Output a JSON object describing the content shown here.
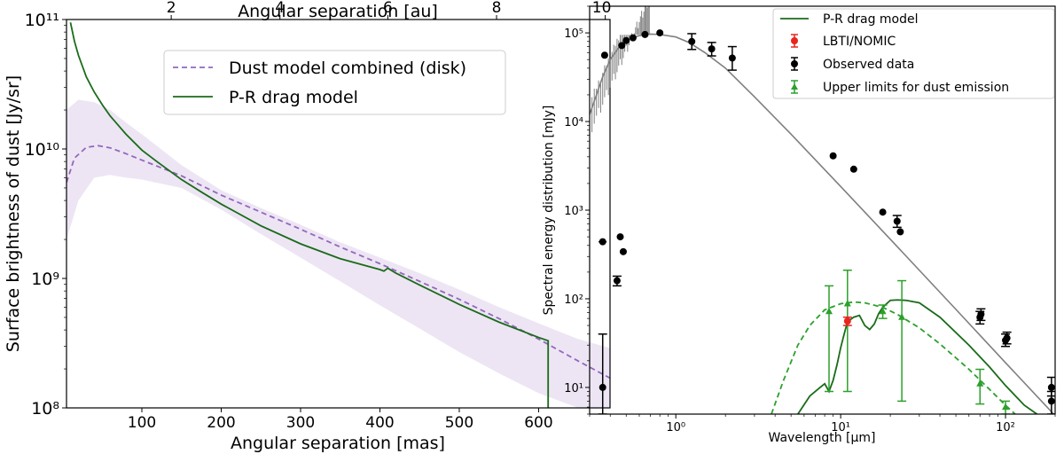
{
  "chart_data": [
    {
      "type": "line",
      "panel": "left",
      "xlabel": "Angular separation [mas]",
      "ylabel": "Surface brightness of dust [Jy/sr]",
      "top_xlabel": "Angular separation [au]",
      "xlim": [
        5,
        690
      ],
      "ylim": [
        100000000.0,
        100000000000.0
      ],
      "yscale": "log",
      "x_ticks": [
        100,
        200,
        300,
        400,
        500,
        600
      ],
      "x_tick_labels": [
        "100",
        "200",
        "300",
        "400",
        "500",
        "600"
      ],
      "top_ticks_mas": [
        137,
        274,
        410,
        547,
        684
      ],
      "top_tick_labels": [
        "2",
        "4",
        "6",
        "8",
        "10"
      ],
      "y_ticks": [
        100000000.0,
        1000000000.0,
        10000000000.0,
        100000000000.0
      ],
      "y_tick_labels": [
        "10⁸",
        "10⁹",
        "10¹⁰",
        "10¹¹"
      ],
      "legend": [
        {
          "label": "Dust model combined (disk)",
          "color": "#9467bd",
          "style": "dashed"
        },
        {
          "label": "P-R drag model",
          "color": "#1a6b1a",
          "style": "solid"
        }
      ],
      "band": {
        "name": "Dust model uncertainty",
        "color": "#9467bd",
        "x": [
          5,
          20,
          40,
          60,
          80,
          100,
          150,
          200,
          250,
          300,
          350,
          400,
          450,
          500,
          550,
          600,
          650,
          690
        ],
        "upper": [
          20000000000.0,
          24000000000.0,
          23000000000.0,
          20000000000.0,
          16000000000.0,
          13000000000.0,
          7500000000.0,
          4800000000.0,
          3500000000.0,
          2600000000.0,
          1900000000.0,
          1450000000.0,
          1100000000.0,
          820000000.0,
          600000000.0,
          450000000.0,
          340000000.0,
          290000000.0
        ],
        "lower": [
          2000000000.0,
          4000000000.0,
          6000000000.0,
          6300000000.0,
          6000000000.0,
          5800000000.0,
          5000000000.0,
          3400000000.0,
          2200000000.0,
          1450000000.0,
          950000000.0,
          620000000.0,
          410000000.0,
          270000000.0,
          185000000.0,
          130000000.0,
          100000000.0,
          80000000.0
        ]
      },
      "series": [
        {
          "name": "Dust model combined (disk)",
          "color": "#9467bd",
          "style": "dashed",
          "x": [
            5,
            15,
            30,
            45,
            60,
            80,
            100,
            150,
            200,
            250,
            300,
            350,
            400,
            450,
            500,
            550,
            600,
            650,
            690
          ],
          "y": [
            5500000000.0,
            8500000000.0,
            10300000000.0,
            10600000000.0,
            10200000000.0,
            9200000000.0,
            8200000000.0,
            6200000000.0,
            4400000000.0,
            3250000000.0,
            2400000000.0,
            1750000000.0,
            1300000000.0,
            950000000.0,
            690000000.0,
            490000000.0,
            340000000.0,
            230000000.0,
            170000000.0
          ]
        },
        {
          "name": "P-R drag model",
          "color": "#1a6b1a",
          "style": "solid",
          "x": [
            10,
            15,
            20,
            30,
            40,
            50,
            60,
            80,
            100,
            120,
            150,
            175,
            200,
            250,
            300,
            350,
            400,
            405,
            410,
            420,
            450,
            500,
            550,
            600,
            612,
            612,
            613
          ],
          "y": [
            95000000000.0,
            68000000000.0,
            53000000000.0,
            36000000000.0,
            27500000000.0,
            22000000000.0,
            18000000000.0,
            13000000000.0,
            9800000000.0,
            7900000000.0,
            5800000000.0,
            4650000000.0,
            3750000000.0,
            2550000000.0,
            1850000000.0,
            1420000000.0,
            1170000000.0,
            1140000000.0,
            1200000000.0,
            1100000000.0,
            890000000.0,
            630000000.0,
            460000000.0,
            350000000.0,
            330000000.0,
            100000000.0,
            90000000.0
          ]
        }
      ]
    },
    {
      "type": "line",
      "panel": "right",
      "xlabel": "Wavelength [μm]",
      "ylabel": "Spectral energy distribution [mJy]",
      "xscale": "log",
      "yscale": "log",
      "xlim": [
        0.3,
        200
      ],
      "ylim": [
        5,
        200000
      ],
      "x_ticks": [
        1,
        10,
        100
      ],
      "x_tick_labels": [
        "10⁰",
        "10¹",
        "10²"
      ],
      "y_ticks": [
        10,
        100,
        1000,
        10000,
        100000
      ],
      "y_tick_labels": [
        "10¹",
        "10²",
        "10³",
        "10⁴",
        "10⁵"
      ],
      "legend": [
        {
          "label": "P-R drag model",
          "color": "#1a6b1a",
          "style": "solid"
        },
        {
          "label": "LBTI/NOMIC",
          "color": "#e8251e",
          "style": "errorbar-dot"
        },
        {
          "label": "Observed data",
          "color": "#000000",
          "style": "errorbar-dot"
        },
        {
          "label": "Upper limits for dust emission",
          "color": "#2ca02c",
          "style": "errorbar-triangle"
        }
      ],
      "series": [
        {
          "name": "Stellar photosphere",
          "color": "#7f7f7f",
          "style": "solid",
          "x": [
            0.3,
            0.33,
            0.36,
            0.4,
            0.45,
            0.5,
            0.55,
            0.6,
            0.7,
            0.8,
            1.0,
            1.2,
            1.5,
            2.0,
            3.0,
            5.0,
            10.0,
            20.0,
            50.0,
            100.0,
            200.0
          ],
          "y": [
            12000,
            20000,
            32000,
            50000,
            68000,
            80000,
            88000,
            93000,
            97000,
            96000,
            90000,
            78000,
            60000,
            40000,
            19000,
            7200,
            1850,
            470,
            76,
            19,
            4.8
          ]
        },
        {
          "name": "P-R drag model",
          "color": "#1a6b1a",
          "style": "solid",
          "x": [
            5.5,
            6.5,
            7.5,
            8.0,
            8.5,
            9.0,
            9.5,
            10.0,
            10.5,
            11.0,
            12.0,
            13.0,
            14.0,
            15.0,
            16.0,
            17.0,
            18.0,
            20.0,
            22.0,
            25.0,
            30.0,
            40.0,
            60.0,
            80.0,
            100.0,
            130.0,
            160.0
          ],
          "y": [
            5,
            8,
            10,
            11,
            9,
            12,
            18,
            28,
            40,
            55,
            62,
            65,
            50,
            45,
            52,
            68,
            80,
            96,
            97,
            96,
            90,
            62,
            30,
            17,
            10.5,
            6.3,
            4.8
          ]
        },
        {
          "name": "Upper limits model (dashed)",
          "color": "#2ca02c",
          "style": "dashed",
          "x": [
            3.8,
            4.5,
            5.5,
            6.5,
            8.0,
            10.0,
            12.0,
            14.0,
            18.0,
            22.0,
            30.0,
            40.0,
            60.0,
            80.0,
            100.0,
            130.0
          ],
          "y": [
            5,
            12,
            30,
            50,
            75,
            88,
            92,
            90,
            80,
            67,
            47,
            31,
            16,
            9.5,
            6.3,
            4.0
          ]
        }
      ],
      "points": {
        "observed": [
          {
            "x": 0.36,
            "y": 10,
            "yerr_lo": 5,
            "yerr_hi": 40
          },
          {
            "x": 0.36,
            "y": 440,
            "xerr": 0.02
          },
          {
            "x": 0.44,
            "y": 160,
            "yerr_lo": 140,
            "yerr_hi": 180
          },
          {
            "x": 0.46,
            "y": 500,
            "xerr": 0.02
          },
          {
            "x": 0.48,
            "y": 340,
            "xerr": 0.02
          },
          {
            "x": 0.37,
            "y": 56000
          },
          {
            "x": 0.47,
            "y": 72000
          },
          {
            "x": 0.5,
            "y": 82000
          },
          {
            "x": 0.55,
            "y": 88000
          },
          {
            "x": 0.65,
            "y": 96000
          },
          {
            "x": 0.8,
            "y": 100000
          },
          {
            "x": 1.25,
            "y": 80000,
            "yerr_lo": 65000,
            "yerr_hi": 98000
          },
          {
            "x": 1.65,
            "y": 66000,
            "yerr_lo": 55000,
            "yerr_hi": 78000
          },
          {
            "x": 2.2,
            "y": 52000,
            "yerr_lo": 38000,
            "yerr_hi": 70000
          },
          {
            "x": 9,
            "y": 4100
          },
          {
            "x": 12,
            "y": 2900
          },
          {
            "x": 18,
            "y": 950
          },
          {
            "x": 22,
            "y": 750,
            "yerr_lo": 640,
            "yerr_hi": 870
          },
          {
            "x": 23,
            "y": 570
          },
          {
            "x": 70,
            "y": 62,
            "yerr_lo": 52,
            "yerr_hi": 72
          },
          {
            "x": 71,
            "y": 67,
            "yerr_lo": 57,
            "yerr_hi": 77
          },
          {
            "x": 100,
            "y": 34,
            "yerr_lo": 29,
            "yerr_hi": 40
          },
          {
            "x": 102,
            "y": 36,
            "yerr_lo": 31,
            "yerr_hi": 42
          },
          {
            "x": 190,
            "y": 10,
            "yerr_lo": 8,
            "yerr_hi": 13
          },
          {
            "x": 190,
            "y": 7,
            "yerr_lo": 5,
            "yerr_hi": 9
          }
        ],
        "lbti": [
          {
            "x": 11,
            "y": 56,
            "yerr_lo": 50,
            "yerr_hi": 62
          }
        ],
        "upper_limits": [
          {
            "x": 8.5,
            "y": 72,
            "yerr_lo": 9,
            "yerr_hi": 140
          },
          {
            "x": 11,
            "y": 88,
            "yerr_lo": 9,
            "yerr_hi": 210
          },
          {
            "x": 18,
            "y": 72,
            "yerr_lo": 60,
            "yerr_hi": 85
          },
          {
            "x": 23.5,
            "y": 62,
            "yerr_lo": 7,
            "yerr_hi": 160
          },
          {
            "x": 70,
            "y": 11,
            "yerr_lo": 6.5,
            "yerr_hi": 16
          },
          {
            "x": 100,
            "y": 6,
            "yerr_lo": 5,
            "yerr_hi": 7
          }
        ]
      }
    }
  ]
}
